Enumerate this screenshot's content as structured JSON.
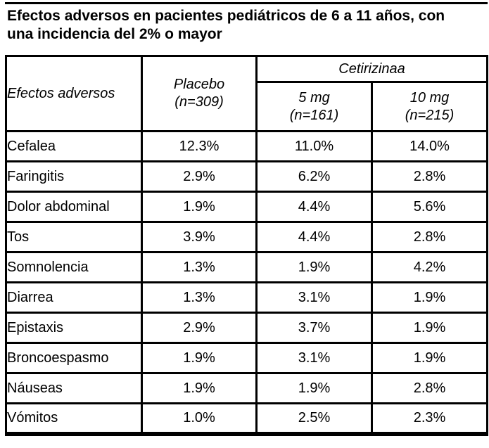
{
  "page": {
    "title_line1": "Efectos adversos en pacientes pediátricos de 6 a 11 años, con",
    "title_line2": "una incidencia del 2% o mayor"
  },
  "colors": {
    "text": "#000000",
    "background": "#ffffff",
    "border": "#000000"
  },
  "table": {
    "columns": {
      "effects": "Efectos adversos",
      "placebo_name": "Placebo",
      "placebo_n": "(n=309)",
      "group": "Cetirizinaa",
      "dose5_name": "5 mg",
      "dose5_n": "(n=161)",
      "dose10_name": "10 mg",
      "dose10_n": "(n=215)"
    },
    "rows": [
      {
        "label": "Cefalea",
        "placebo": "12.3%",
        "mg5": "11.0%",
        "mg10": "14.0%"
      },
      {
        "label": "Faringitis",
        "placebo": "2.9%",
        "mg5": "6.2%",
        "mg10": "2.8%"
      },
      {
        "label": "Dolor abdominal",
        "placebo": "1.9%",
        "mg5": "4.4%",
        "mg10": "5.6%"
      },
      {
        "label": "Tos",
        "placebo": "3.9%",
        "mg5": "4.4%",
        "mg10": "2.8%"
      },
      {
        "label": "Somnolencia",
        "placebo": "1.3%",
        "mg5": "1.9%",
        "mg10": "4.2%"
      },
      {
        "label": "Diarrea",
        "placebo": "1.3%",
        "mg5": "3.1%",
        "mg10": "1.9%"
      },
      {
        "label": "Epistaxis",
        "placebo": "2.9%",
        "mg5": "3.7%",
        "mg10": "1.9%"
      },
      {
        "label": "Broncoespasmo",
        "placebo": "1.9%",
        "mg5": "3.1%",
        "mg10": "1.9%"
      },
      {
        "label": "Náuseas",
        "placebo": "1.9%",
        "mg5": "1.9%",
        "mg10": "2.8%"
      },
      {
        "label": "Vómitos",
        "placebo": "1.0%",
        "mg5": "2.5%",
        "mg10": "2.3%"
      }
    ]
  }
}
